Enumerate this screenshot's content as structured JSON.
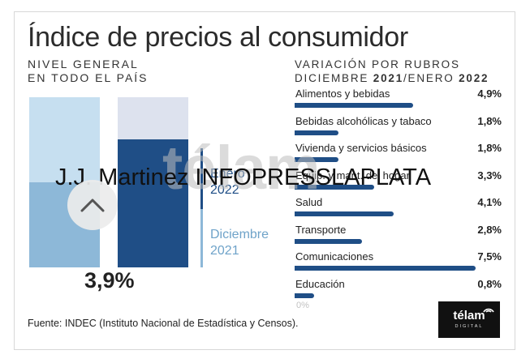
{
  "header": {
    "title": "Índice de precios al consumidor",
    "left_line1": "NIVEL GENERAL",
    "left_line2": "EN TODO EL PAÍS",
    "right_line1": "VARIACIÓN POR RUBROS",
    "right_line2_pre": "DICIEMBRE ",
    "right_line2_y1": "2021",
    "right_line2_mid": "/ENERO ",
    "right_line2_y2": "2022"
  },
  "general": {
    "value_label": "3,9%",
    "legend": [
      {
        "line1": "Enero",
        "line2": "2022",
        "color": "#1f4e86"
      },
      {
        "line1": "Diciembre",
        "line2": "2021",
        "color": "#8db8d8"
      }
    ]
  },
  "chart_data": {
    "type": "bar",
    "orientation": "horizontal",
    "title": "VARIACIÓN POR RUBROS DICIEMBRE 2021/ENERO 2022",
    "categories": [
      "Alimentos y bebidas",
      "Bebidas alcohólicas y tabaco",
      "Vivienda y servicios básicos",
      "Equip. y mant. del hogar",
      "Salud",
      "Transporte",
      "Comunicaciones",
      "Educación"
    ],
    "values": [
      4.9,
      1.8,
      1.8,
      3.3,
      4.1,
      2.8,
      7.5,
      0.8
    ],
    "value_labels": [
      "4,9%",
      "1,8%",
      "1,8%",
      "3,3%",
      "4,1%",
      "2,8%",
      "7,5%",
      "0,8%"
    ],
    "xlim": [
      0,
      7.8
    ],
    "axis_min_label": "0%",
    "bar_color": "#1f4e86"
  },
  "footer": {
    "source": "Fuente: INDEC (Instituto Nacional de Estadística y Censos).",
    "logo_text": "télam",
    "logo_sub": "DIGITAL"
  },
  "overlay": {
    "watermark_logo": "télam",
    "credit": "J.J. Martinez INFOPRESSLAPLATA",
    "scroll_icon": "chevron-up-icon"
  },
  "colors": {
    "accent": "#1f4e86",
    "light_blue": "#8db8d8",
    "pale_blue": "#c6dff0",
    "pale_gray_blue": "#dde2ee"
  }
}
